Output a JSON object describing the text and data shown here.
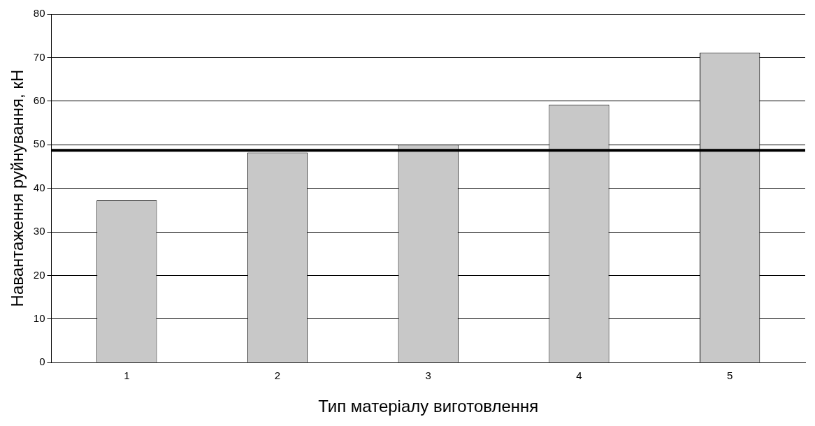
{
  "chart_data": {
    "type": "bar",
    "xlabel": "Тип матеріалу виготовлення",
    "ylabel": "Навантаження руйнування, кН",
    "categories": [
      "1",
      "2",
      "3",
      "4",
      "5"
    ],
    "values": [
      37.2,
      48.2,
      50.0,
      59.2,
      71.1
    ],
    "color": "#c8c8c8",
    "ylim": [
      0,
      80
    ],
    "yticks": [
      0,
      10,
      20,
      30,
      40,
      50,
      60,
      70,
      80
    ],
    "grid": "y",
    "ref_lines": [
      {
        "axis": "y",
        "value": 48.7,
        "color": "#000000"
      }
    ]
  }
}
